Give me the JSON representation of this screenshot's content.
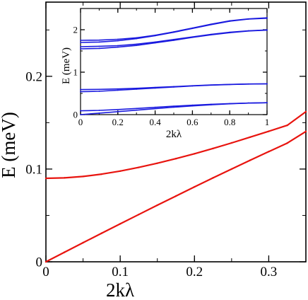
{
  "chart_data": [
    {
      "id": "main",
      "type": "line",
      "xlabel": "2kλ",
      "ylabel": "E (meV)",
      "xlim": [
        0,
        0.35
      ],
      "ylim": [
        0,
        0.28
      ],
      "xticks": [
        0,
        0.1,
        0.2,
        0.3
      ],
      "xtick_labels": [
        "0",
        "0.1",
        "0.2",
        "0.3"
      ],
      "yticks": [
        0,
        0.1,
        0.2
      ],
      "ytick_labels": [
        "0",
        "0.1",
        "0.2"
      ],
      "grid": false,
      "series": [
        {
          "color": "#e8140f",
          "x": [
            0,
            0.025,
            0.05,
            0.075,
            0.1,
            0.125,
            0.15,
            0.175,
            0.2,
            0.225,
            0.25,
            0.275,
            0.3,
            0.325,
            0.35
          ],
          "y": [
            0.0,
            0.0103,
            0.0206,
            0.0308,
            0.0409,
            0.051,
            0.061,
            0.0709,
            0.0808,
            0.0905,
            0.1,
            0.1095,
            0.1188,
            0.128,
            0.1405
          ]
        },
        {
          "color": "#e8140f",
          "x": [
            0,
            0.025,
            0.05,
            0.075,
            0.1,
            0.125,
            0.15,
            0.175,
            0.2,
            0.225,
            0.25,
            0.275,
            0.3,
            0.325,
            0.35
          ],
          "y": [
            0.09,
            0.0905,
            0.092,
            0.0945,
            0.0978,
            0.1018,
            0.1063,
            0.1112,
            0.1165,
            0.1222,
            0.1282,
            0.1344,
            0.1407,
            0.1472,
            0.1618
          ]
        }
      ]
    },
    {
      "id": "inset",
      "type": "line",
      "xlabel": "2kλ",
      "ylabel": "E (meV)",
      "xlim": [
        0,
        1
      ],
      "ylim": [
        0,
        2.5
      ],
      "xticks": [
        0,
        0.2,
        0.4,
        0.6,
        0.8,
        1
      ],
      "xtick_labels": [
        "0",
        "0.2",
        "0.4",
        "0.6",
        "0.8",
        "1"
      ],
      "yticks": [
        0,
        1,
        2
      ],
      "ytick_labels": [
        "0",
        "1",
        "2"
      ],
      "grid": false,
      "series": [
        {
          "color": "#1a1adf",
          "x": [
            0,
            0.1,
            0.2,
            0.3,
            0.4,
            0.5,
            0.6,
            0.7,
            0.8,
            0.9,
            1
          ],
          "y": [
            0.0,
            0.035,
            0.07,
            0.105,
            0.14,
            0.175,
            0.205,
            0.232,
            0.255,
            0.272,
            0.28
          ]
        },
        {
          "color": "#1a1adf",
          "x": [
            0,
            0.1,
            0.2,
            0.3,
            0.4,
            0.5,
            0.6,
            0.7,
            0.8,
            0.9,
            1
          ],
          "y": [
            0.09,
            0.1,
            0.12,
            0.145,
            0.172,
            0.198,
            0.222,
            0.243,
            0.26,
            0.272,
            0.28
          ]
        },
        {
          "color": "#1a1adf",
          "x": [
            0,
            0.1,
            0.2,
            0.3,
            0.4,
            0.5,
            0.6,
            0.7,
            0.8,
            0.9,
            1
          ],
          "y": [
            0.54,
            0.55,
            0.575,
            0.6,
            0.625,
            0.65,
            0.675,
            0.695,
            0.71,
            0.72,
            0.725
          ]
        },
        {
          "color": "#1a1adf",
          "x": [
            0,
            0.1,
            0.2,
            0.3,
            0.4,
            0.5,
            0.6,
            0.7,
            0.8,
            0.9,
            1
          ],
          "y": [
            0.59,
            0.595,
            0.605,
            0.62,
            0.64,
            0.66,
            0.68,
            0.698,
            0.712,
            0.721,
            0.725
          ]
        },
        {
          "color": "#1a1adf",
          "x": [
            0,
            0.1,
            0.2,
            0.3,
            0.4,
            0.5,
            0.6,
            0.7,
            0.8,
            0.9,
            1
          ],
          "y": [
            1.55,
            1.56,
            1.59,
            1.63,
            1.69,
            1.75,
            1.82,
            1.88,
            1.93,
            1.97,
            1.99
          ]
        },
        {
          "color": "#1a1adf",
          "x": [
            0,
            0.1,
            0.2,
            0.3,
            0.4,
            0.5,
            0.6,
            0.7,
            0.8,
            0.9,
            1
          ],
          "y": [
            1.6,
            1.61,
            1.625,
            1.66,
            1.71,
            1.77,
            1.83,
            1.89,
            1.94,
            1.975,
            1.995
          ]
        },
        {
          "color": "#1a1adf",
          "x": [
            0,
            0.1,
            0.2,
            0.3,
            0.4,
            0.5,
            0.6,
            0.7,
            0.8,
            0.9,
            1
          ],
          "y": [
            1.7,
            1.71,
            1.74,
            1.79,
            1.86,
            1.94,
            2.03,
            2.12,
            2.2,
            2.25,
            2.27
          ]
        },
        {
          "color": "#1a1adf",
          "x": [
            0,
            0.1,
            0.2,
            0.3,
            0.4,
            0.5,
            0.6,
            0.7,
            0.8,
            0.9,
            1
          ],
          "y": [
            1.75,
            1.755,
            1.775,
            1.81,
            1.87,
            1.95,
            2.04,
            2.13,
            2.21,
            2.255,
            2.28
          ]
        }
      ]
    }
  ]
}
